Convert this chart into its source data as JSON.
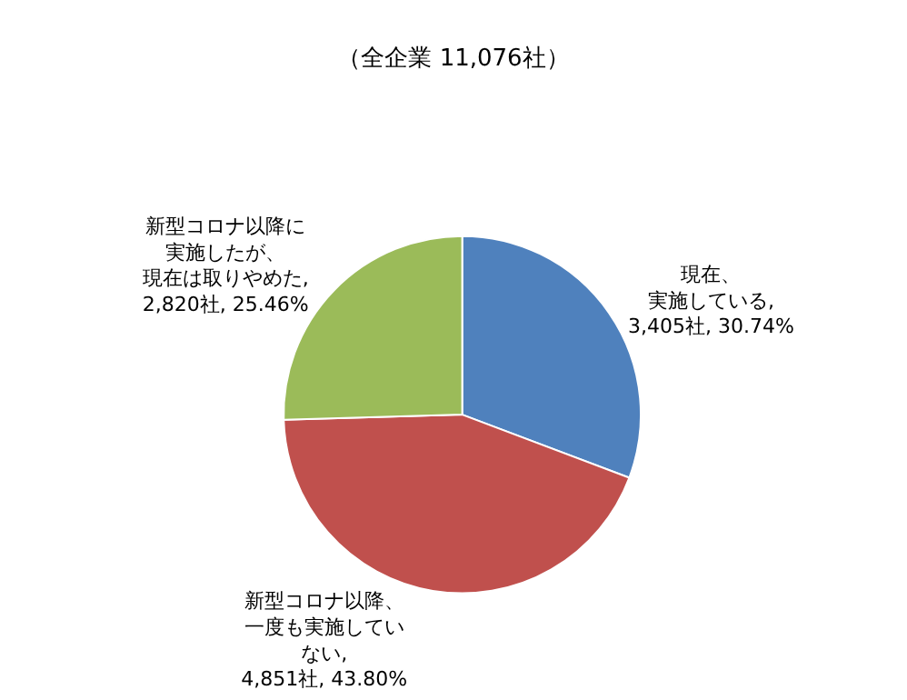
{
  "chart_data": {
    "type": "pie",
    "title": "（全企業 11,076社）",
    "categories": [
      "現在、実施している",
      "新型コロナ以降、一度も実施していない",
      "新型コロナ以降に実施したが、現在は取りやめた"
    ],
    "values": [
      3405,
      4851,
      2820
    ],
    "value_labels": [
      ",\n3,405社, 30.74%",
      ",\n4,851社, 43.80%",
      ",\n2,820社, 25.46%"
    ],
    "colors": [
      "#4f81bd",
      "#c0504d",
      "#9bbb59"
    ],
    "legend": false
  }
}
